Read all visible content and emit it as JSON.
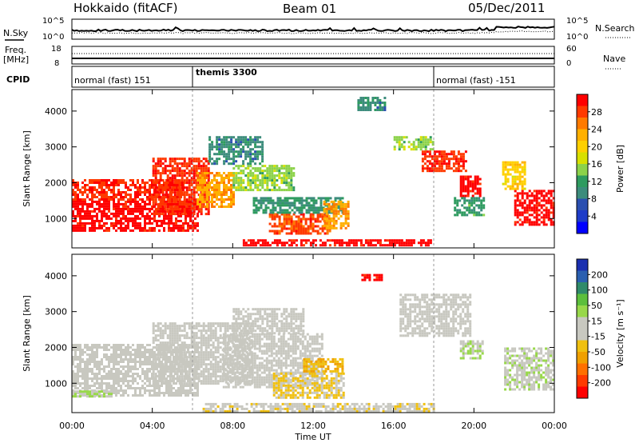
{
  "header": {
    "station": "Hokkaido (fitACF)",
    "beam": "Beam 01",
    "date": "05/Dec/2011"
  },
  "top_panels": {
    "nsky_label": "N.Sky",
    "nsearch_label": "N.Search",
    "freq_label_1": "Freq.",
    "freq_label_2": "[MHz]",
    "nave_label": "Nave",
    "cpid_label": "CPID",
    "noise_ticks_left": [
      "10^5",
      "10^0"
    ],
    "noise_ticks_right": [
      "10^5",
      "10^0"
    ],
    "freq_ticks": [
      "18",
      "8"
    ],
    "nave_ticks": [
      "60",
      "0"
    ],
    "cpid_segments": [
      {
        "label": "normal (fast) 151",
        "start_hour": 0
      },
      {
        "label": "themis 3300",
        "start_hour": 6
      },
      {
        "label": "normal (fast) -151",
        "start_hour": 18
      }
    ]
  },
  "colorbars": {
    "power": {
      "label": "Power [dB]",
      "ticks": [
        "28",
        "24",
        "20",
        "16",
        "12",
        "8",
        "4"
      ],
      "colors": [
        "#ff0000",
        "#ff3a00",
        "#ff7a00",
        "#ffb000",
        "#ffd000",
        "#d8e000",
        "#8cd24a",
        "#2e9b5f",
        "#3c8c7c",
        "#2a4fb0",
        "#1e3cc8",
        "#0000ff"
      ]
    },
    "velocity": {
      "label": "Velocity [m s⁻¹]",
      "ticks": [
        "200",
        "100",
        "50",
        "15",
        "-15",
        "-50",
        "-100",
        "-200"
      ],
      "colors": [
        "#1a2fb0",
        "#2a5fb0",
        "#2f8a6a",
        "#5cbf3c",
        "#98d84a",
        "#c8c8c0",
        "#c8c8c0",
        "#f0c010",
        "#f0a000",
        "#ff7000",
        "#ff3a00",
        "#ff0000"
      ]
    }
  },
  "axes": {
    "ylabel": "Slant Range [km]",
    "yticks": [
      "1000",
      "2000",
      "3000",
      "4000"
    ],
    "xlabel": "Time UT",
    "xticks": [
      "00:00",
      "04:00",
      "08:00",
      "12:00",
      "16:00",
      "20:00",
      "00:00"
    ]
  },
  "chart_data": [
    {
      "type": "heatmap",
      "title": "",
      "quantity": "Power [dB]",
      "xlabel": "Time UT",
      "ylabel": "Slant Range [km]",
      "xlim_hours": [
        0,
        24
      ],
      "ylim_km": [
        180,
        4600
      ],
      "clim": [
        0,
        30
      ],
      "regions": [
        {
          "t0": 0.0,
          "t1": 6.2,
          "r0": 650,
          "r1": 1500,
          "level": 29
        },
        {
          "t0": 0.0,
          "t1": 5.5,
          "r0": 1500,
          "r1": 2100,
          "level": 27
        },
        {
          "t0": 4.0,
          "t1": 6.8,
          "r0": 1100,
          "r1": 2700,
          "level": 27
        },
        {
          "t0": 6.2,
          "t1": 8.0,
          "r0": 1300,
          "r1": 2300,
          "level": 22
        },
        {
          "t0": 8.0,
          "t1": 11.0,
          "r0": 1800,
          "r1": 2500,
          "level": 14
        },
        {
          "t0": 6.8,
          "t1": 9.5,
          "r0": 2500,
          "r1": 3300,
          "level": 9
        },
        {
          "t0": 9.8,
          "t1": 12.8,
          "r0": 600,
          "r1": 1150,
          "level": 26
        },
        {
          "t0": 9.0,
          "t1": 13.5,
          "r0": 1150,
          "r1": 1600,
          "level": 10
        },
        {
          "t0": 12.5,
          "t1": 13.7,
          "r0": 700,
          "r1": 1500,
          "level": 22
        },
        {
          "t0": 8.5,
          "t1": 17.8,
          "r0": 250,
          "r1": 420,
          "level": 29
        },
        {
          "t0": 14.2,
          "t1": 15.6,
          "r0": 4000,
          "r1": 4400,
          "level": 9
        },
        {
          "t0": 16.0,
          "t1": 18.0,
          "r0": 2900,
          "r1": 3300,
          "level": 14
        },
        {
          "t0": 17.4,
          "t1": 19.6,
          "r0": 2300,
          "r1": 2900,
          "level": 27
        },
        {
          "t0": 19.3,
          "t1": 20.3,
          "r0": 1600,
          "r1": 2200,
          "level": 29
        },
        {
          "t0": 19.0,
          "t1": 20.5,
          "r0": 1100,
          "r1": 1600,
          "level": 11
        },
        {
          "t0": 22.0,
          "t1": 24.0,
          "r0": 800,
          "r1": 1800,
          "level": 29
        },
        {
          "t0": 21.4,
          "t1": 22.5,
          "r0": 1800,
          "r1": 2600,
          "level": 19
        }
      ]
    },
    {
      "type": "heatmap",
      "title": "",
      "quantity": "Velocity [m s⁻¹]",
      "xlabel": "Time UT",
      "ylabel": "Slant Range [km]",
      "xlim_hours": [
        0,
        24
      ],
      "ylim_km": [
        180,
        4600
      ],
      "clim": [
        -200,
        200
      ],
      "regions": [
        {
          "t0": 0.0,
          "t1": 6.2,
          "r0": 650,
          "r1": 2100,
          "level": 0
        },
        {
          "t0": 4.0,
          "t1": 9.0,
          "r0": 1000,
          "r1": 2700,
          "level": 0
        },
        {
          "t0": 7.5,
          "t1": 12.5,
          "r0": 900,
          "r1": 2400,
          "level": 0
        },
        {
          "t0": 8.0,
          "t1": 11.5,
          "r0": 2400,
          "r1": 3100,
          "level": 0
        },
        {
          "t0": 10.0,
          "t1": 13.5,
          "r0": 600,
          "r1": 1300,
          "level": -40
        },
        {
          "t0": 11.5,
          "t1": 13.5,
          "r0": 1300,
          "r1": 1700,
          "level": -60
        },
        {
          "t0": 6.5,
          "t1": 18.0,
          "r0": 200,
          "r1": 450,
          "level": -20
        },
        {
          "t0": 14.4,
          "t1": 15.4,
          "r0": 3850,
          "r1": 4050,
          "level": -180
        },
        {
          "t0": 16.3,
          "t1": 19.8,
          "r0": 2300,
          "r1": 3500,
          "level": 0
        },
        {
          "t0": 19.3,
          "t1": 20.4,
          "r0": 1700,
          "r1": 2200,
          "level": 30
        },
        {
          "t0": 21.5,
          "t1": 24.0,
          "r0": 800,
          "r1": 2000,
          "level": 20
        },
        {
          "t0": 0.0,
          "t1": 2.0,
          "r0": 650,
          "r1": 800,
          "level": 30
        }
      ]
    }
  ]
}
